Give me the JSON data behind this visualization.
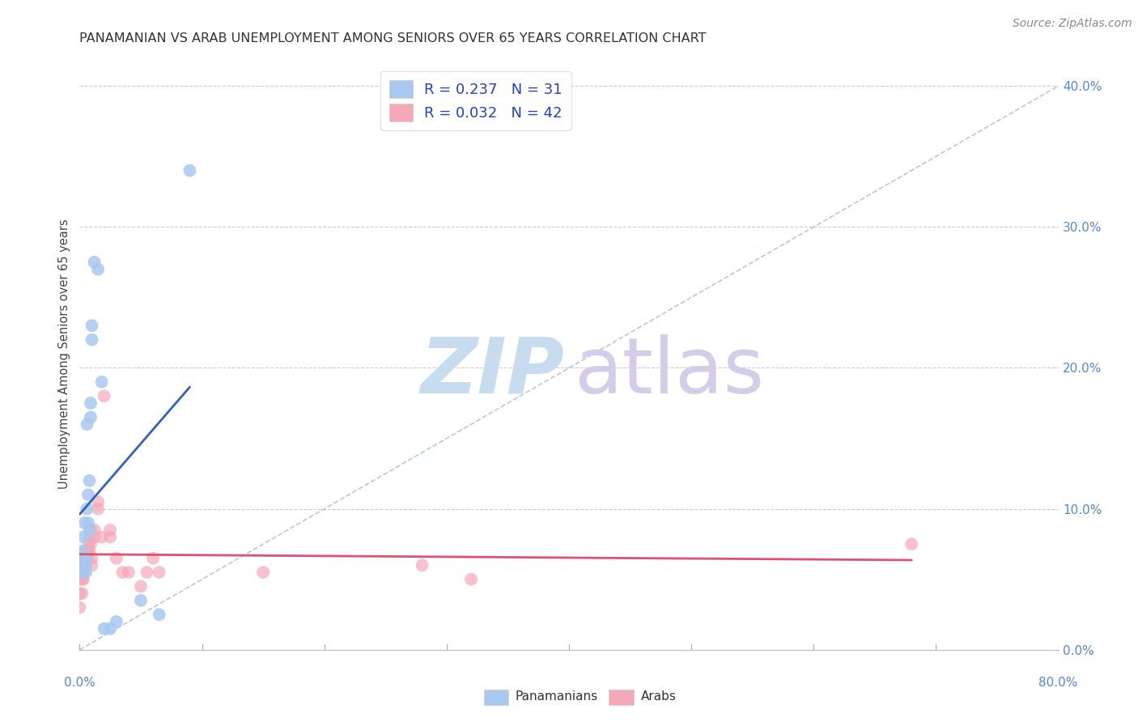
{
  "title": "PANAMANIAN VS ARAB UNEMPLOYMENT AMONG SENIORS OVER 65 YEARS CORRELATION CHART",
  "source": "Source: ZipAtlas.com",
  "ylabel": "Unemployment Among Seniors over 65 years",
  "yticks_right_vals": [
    0.0,
    0.1,
    0.2,
    0.3,
    0.4
  ],
  "watermark_zip": "ZIP",
  "watermark_atlas": "atlas",
  "xlim": [
    0.0,
    0.8
  ],
  "ylim": [
    0.0,
    0.42
  ],
  "panamanian_x": [
    0.0,
    0.0,
    0.0,
    0.002,
    0.002,
    0.003,
    0.003,
    0.003,
    0.004,
    0.005,
    0.005,
    0.005,
    0.006,
    0.006,
    0.007,
    0.007,
    0.008,
    0.008,
    0.009,
    0.009,
    0.01,
    0.01,
    0.012,
    0.015,
    0.018,
    0.02,
    0.025,
    0.03,
    0.05,
    0.065,
    0.09
  ],
  "panamanian_y": [
    0.055,
    0.06,
    0.065,
    0.055,
    0.07,
    0.08,
    0.06,
    0.065,
    0.09,
    0.055,
    0.06,
    0.065,
    0.1,
    0.16,
    0.11,
    0.09,
    0.12,
    0.085,
    0.165,
    0.175,
    0.22,
    0.23,
    0.275,
    0.27,
    0.19,
    0.015,
    0.015,
    0.02,
    0.035,
    0.025,
    0.34
  ],
  "arab_x": [
    0.0,
    0.0,
    0.0,
    0.002,
    0.002,
    0.002,
    0.003,
    0.003,
    0.003,
    0.004,
    0.004,
    0.005,
    0.005,
    0.006,
    0.006,
    0.007,
    0.007,
    0.008,
    0.008,
    0.009,
    0.009,
    0.01,
    0.01,
    0.012,
    0.012,
    0.015,
    0.015,
    0.018,
    0.02,
    0.025,
    0.025,
    0.03,
    0.035,
    0.04,
    0.05,
    0.055,
    0.06,
    0.065,
    0.15,
    0.28,
    0.32,
    0.68
  ],
  "arab_y": [
    0.03,
    0.04,
    0.05,
    0.04,
    0.05,
    0.055,
    0.05,
    0.055,
    0.06,
    0.065,
    0.07,
    0.06,
    0.065,
    0.065,
    0.07,
    0.07,
    0.075,
    0.07,
    0.08,
    0.075,
    0.085,
    0.06,
    0.065,
    0.08,
    0.085,
    0.1,
    0.105,
    0.08,
    0.18,
    0.08,
    0.085,
    0.065,
    0.055,
    0.055,
    0.045,
    0.055,
    0.065,
    0.055,
    0.055,
    0.06,
    0.05,
    0.075
  ],
  "pan_color": "#a8c8f0",
  "arab_color": "#f4a8b8",
  "pan_line_color": "#3060c0",
  "arab_line_color": "#e05070",
  "ref_line_color": "#b8c8d8",
  "background_color": "#ffffff",
  "watermark_color_zip": "#c8dcf0",
  "watermark_color_atlas": "#d4cce8",
  "grid_color": "#cccccc",
  "tick_color": "#aaaaaa",
  "label_color": "#5588cc",
  "title_color": "#333333",
  "source_color": "#888888"
}
